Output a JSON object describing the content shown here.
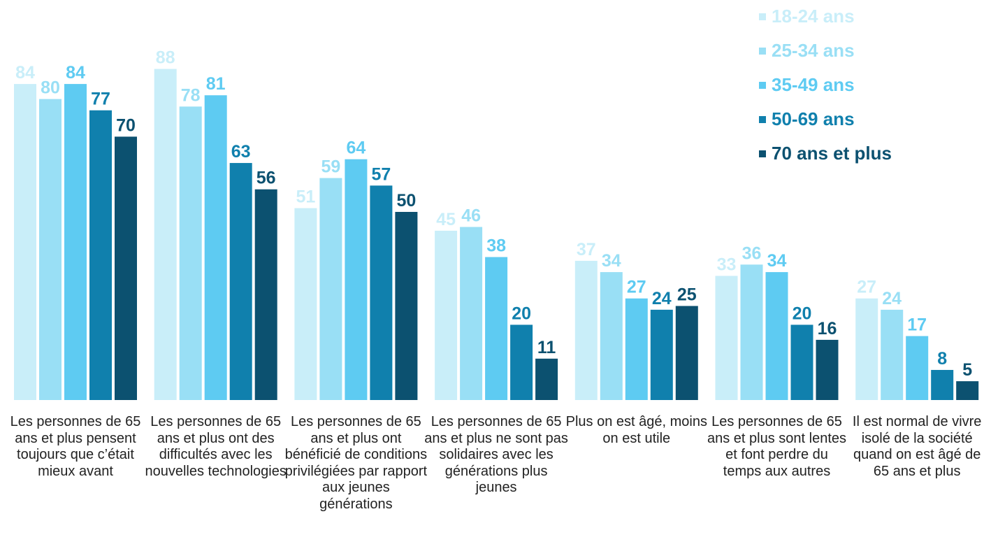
{
  "chart_data": {
    "type": "bar",
    "categories": [
      "Les personnes de 65 ans et plus pensent toujours que c’était mieux avant",
      "Les personnes de 65 ans et plus ont des difficultés avec les nouvelles technologies",
      "Les personnes de 65 ans et plus ont bénéficié de conditions privilégiées par rapport aux jeunes générations",
      "Les personnes de 65 ans et plus ne sont pas solidaires avec les générations plus jeunes",
      "Plus on est âgé, moins on est utile",
      "Les personnes de 65 ans et plus sont lentes et font perdre du temps aux autres",
      "Il est normal de vivre isolé de la société quand on est âgé de 65 ans et plus"
    ],
    "series": [
      {
        "name": "18-24 ans",
        "color": "#c9eef9",
        "values": [
          84,
          88,
          51,
          45,
          37,
          33,
          27
        ]
      },
      {
        "name": "25-34 ans",
        "color": "#99dff5",
        "values": [
          80,
          78,
          59,
          46,
          34,
          36,
          24
        ]
      },
      {
        "name": "35-49 ans",
        "color": "#5ecbf2",
        "values": [
          84,
          81,
          64,
          38,
          27,
          34,
          17
        ]
      },
      {
        "name": "50-69 ans",
        "color": "#1080ad",
        "values": [
          77,
          63,
          57,
          20,
          24,
          20,
          8
        ]
      },
      {
        "name": "70 ans et plus",
        "color": "#0c5170",
        "values": [
          70,
          56,
          50,
          11,
          25,
          16,
          5
        ]
      }
    ],
    "legend": "top-right"
  }
}
